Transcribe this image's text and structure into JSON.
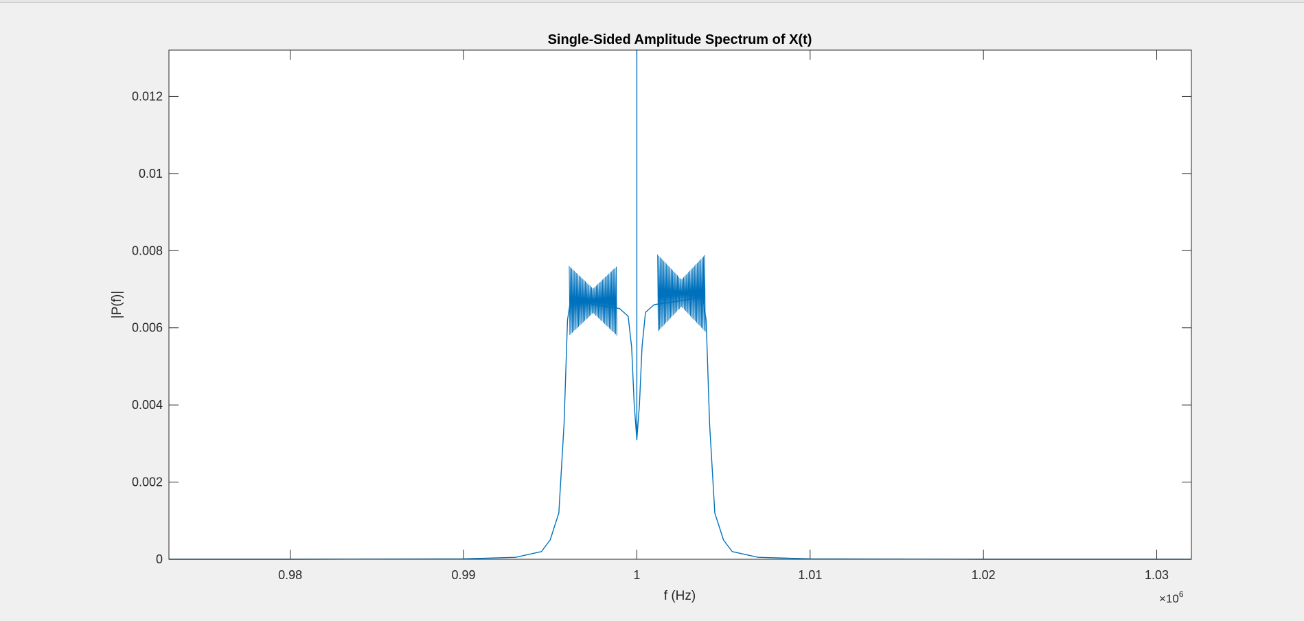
{
  "chart_data": {
    "type": "line",
    "title": "Single-Sided Amplitude Spectrum of X(t)",
    "xlabel": "f (Hz)",
    "ylabel": "|P(f)|",
    "x_exponent_label": "×10",
    "x_exponent_power": "6",
    "x_scale": 1000000,
    "xlim": [
      0.973,
      1.032
    ],
    "ylim": [
      0,
      0.0132
    ],
    "x_ticks": [
      0.98,
      0.99,
      1,
      1.01,
      1.02,
      1.03
    ],
    "x_tick_labels": [
      "0.98",
      "0.99",
      "1",
      "1.01",
      "1.02",
      "1.03"
    ],
    "y_ticks": [
      0,
      0.002,
      0.004,
      0.006,
      0.008,
      0.01,
      0.012
    ],
    "y_tick_labels": [
      "0",
      "0.002",
      "0.004",
      "0.006",
      "0.008",
      "0.01",
      "0.012"
    ],
    "grid": false,
    "box": true,
    "line_color": "#0072bd",
    "series": [
      {
        "x": [
          0.973,
          0.98,
          0.99,
          0.993,
          0.9945,
          0.995,
          0.9955,
          0.9958,
          0.996,
          0.9962,
          0.9975,
          0.999,
          0.9995,
          0.9997,
          0.99985,
          1.0,
          1.0,
          1.0,
          1.00015,
          1.0003,
          1.0005,
          1.001,
          1.0025,
          1.0038,
          1.004,
          1.0042,
          1.0045,
          1.005,
          1.0055,
          1.007,
          1.01,
          1.02,
          1.032
        ],
        "y": [
          0,
          0,
          1e-05,
          5e-05,
          0.0002,
          0.0005,
          0.0012,
          0.0035,
          0.0062,
          0.0068,
          0.0066,
          0.0065,
          0.0063,
          0.0055,
          0.004,
          0.0031,
          0.0132,
          0.0031,
          0.004,
          0.0055,
          0.0064,
          0.0066,
          0.0067,
          0.0068,
          0.0062,
          0.0035,
          0.0012,
          0.0005,
          0.0002,
          5e-05,
          1e-05,
          0,
          0
        ]
      }
    ],
    "ripple_band": [
      {
        "x_range": [
          0.9961,
          0.99885
        ],
        "y_min": 0.0058,
        "y_max": 0.0076
      },
      {
        "x_range": [
          1.0012,
          1.00395
        ],
        "y_min": 0.0059,
        "y_max": 0.0079
      }
    ]
  }
}
